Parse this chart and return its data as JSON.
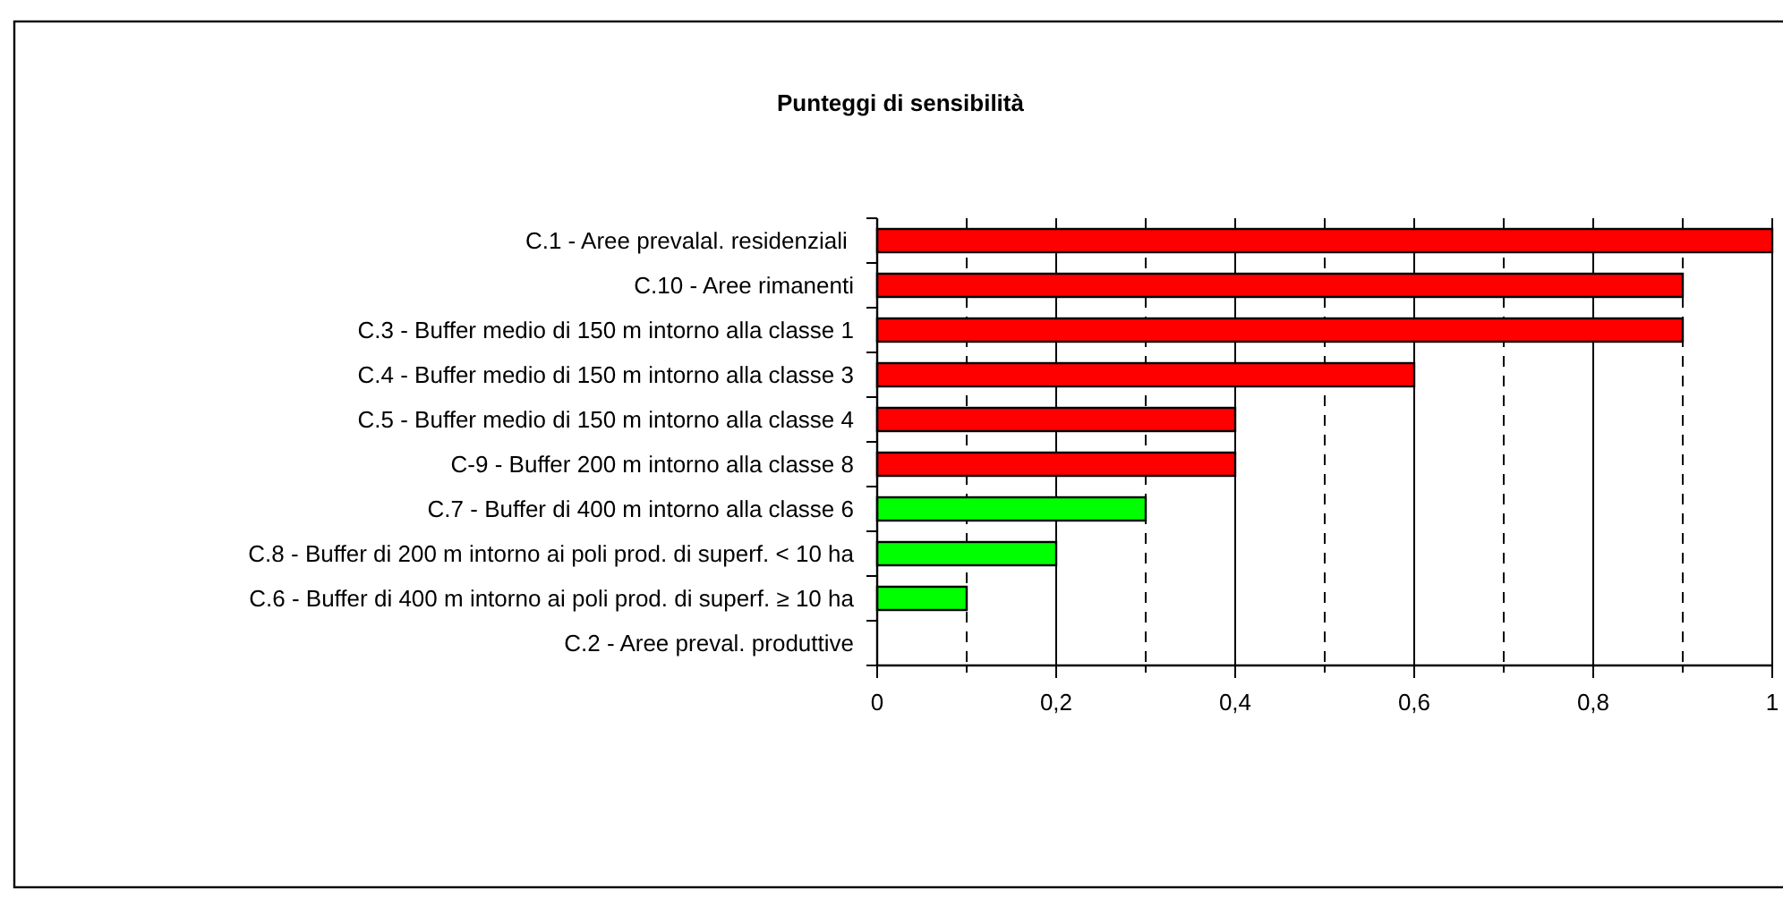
{
  "chart_data": {
    "type": "bar",
    "orientation": "horizontal",
    "title": "Punteggi di sensibilità",
    "categories": [
      "C.1 - Aree prevalal. residenziali ",
      "C.10 - Aree rimanenti",
      "C.3 - Buffer medio di 150 m intorno alla classe 1",
      "C.4 - Buffer medio di 150 m intorno alla classe 3",
      "C.5 - Buffer medio di 150 m intorno alla classe 4",
      "C-9 - Buffer 200 m intorno alla classe 8",
      "C.7 - Buffer di 400 m intorno alla classe 6",
      "C.8 - Buffer di 200 m intorno ai poli prod. di superf. < 10 ha",
      "C.6 - Buffer di 400 m intorno ai poli prod. di superf. ≥ 10 ha",
      "C.2 - Aree preval. produttive"
    ],
    "values": [
      1,
      0.9,
      0.9,
      0.6,
      0.4,
      0.4,
      0.3,
      0.2,
      0.1,
      0
    ],
    "colors": [
      "#ff0000",
      "#ff0000",
      "#ff0000",
      "#ff0000",
      "#ff0000",
      "#ff0000",
      "#00ff00",
      "#00ff00",
      "#00ff00",
      "#00ff00"
    ],
    "xlim": [
      0,
      1
    ],
    "xticks": [
      0,
      {
        "value": 0.1,
        "label": null
      },
      {
        "value": 0.2,
        "label": "0,2"
      },
      {
        "value": 0.3,
        "label": null
      },
      {
        "value": 0.4,
        "label": "0,4"
      },
      {
        "value": 0.5,
        "label": null
      },
      {
        "value": 0.6,
        "label": "0,6"
      },
      {
        "value": 0.7,
        "label": null
      },
      {
        "value": 0.8,
        "label": "0,8"
      },
      {
        "value": 0.9,
        "label": null
      },
      1
    ],
    "grid": "x"
  }
}
